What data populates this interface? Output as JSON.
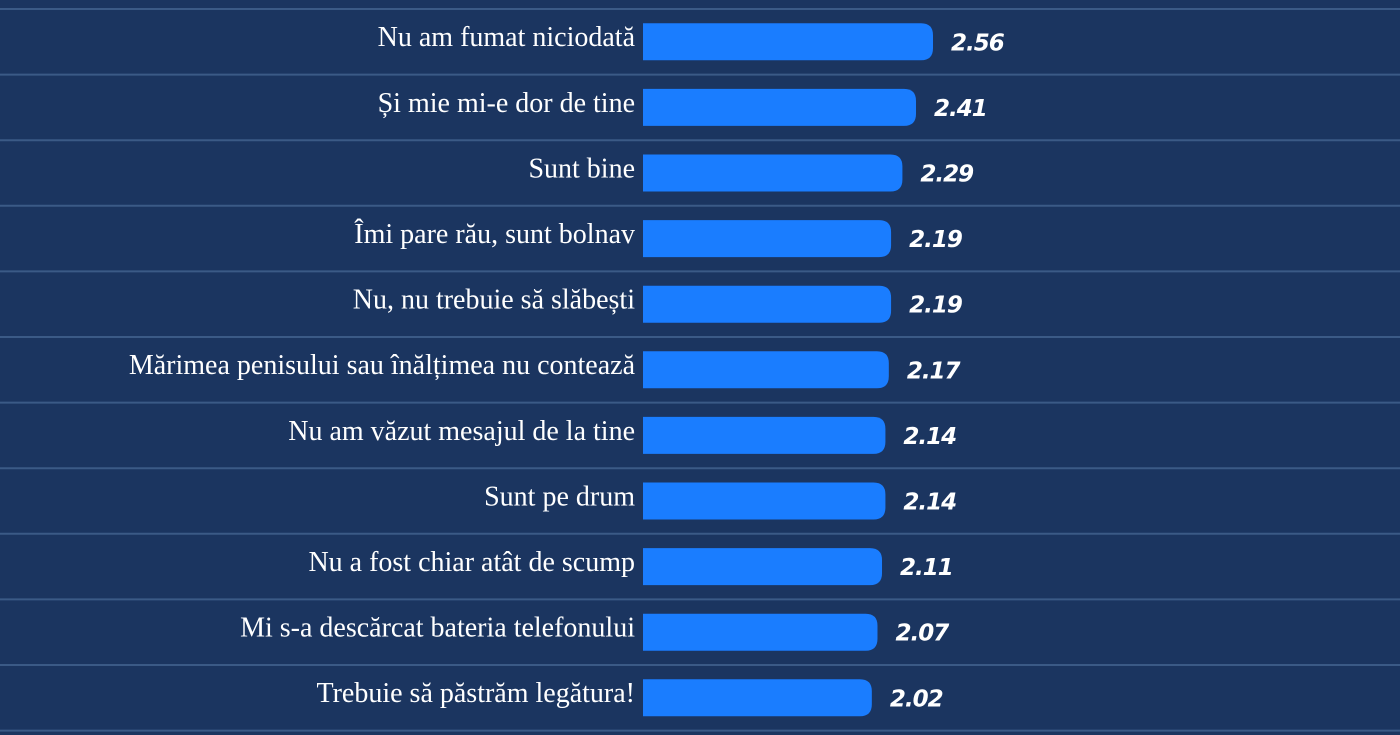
{
  "chart_data": {
    "type": "bar",
    "orientation": "horizontal",
    "color": "#1a7dff",
    "categories": [
      "Nu am fumat niciodată",
      "Și mie mi-e dor de tine",
      "Sunt bine",
      "Îmi pare rău, sunt bolnav",
      "Nu, nu trebuie să slăbești",
      "Mărimea penisului sau înălțimea nu contează",
      "Nu am văzut mesajul de la tine",
      "Sunt pe drum",
      "Nu a fost chiar atât de scump",
      "Mi s-a descărcat bateria telefonului",
      "Trebuie să păstrăm legătura!"
    ],
    "values": [
      2.56,
      2.41,
      2.29,
      2.19,
      2.19,
      2.17,
      2.14,
      2.14,
      2.11,
      2.07,
      2.02
    ]
  }
}
